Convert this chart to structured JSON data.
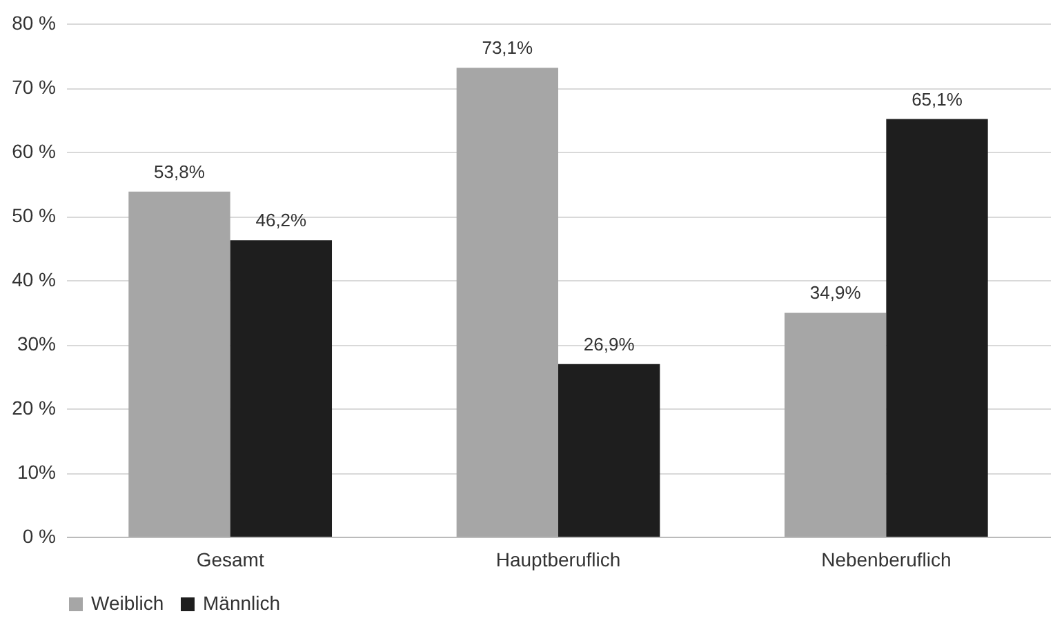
{
  "chart_data": {
    "type": "bar",
    "categories": [
      "Gesamt",
      "Hauptberuflich",
      "Nebenberuflich"
    ],
    "series": [
      {
        "name": "Weiblich",
        "color": "#a6a6a6",
        "values": [
          53.8,
          73.1,
          34.9
        ],
        "value_labels": [
          "53,8%",
          "73,1%",
          "34,9%"
        ]
      },
      {
        "name": "Männlich",
        "color": "#1e1e1e",
        "values": [
          46.2,
          26.9,
          65.1
        ],
        "value_labels": [
          "46,2%",
          "26,9%",
          "65,1%"
        ]
      }
    ],
    "ylim": [
      0,
      80
    ],
    "yticks": [
      {
        "value": 0,
        "label": "0 %"
      },
      {
        "value": 10,
        "label": "10%"
      },
      {
        "value": 20,
        "label": "20 %"
      },
      {
        "value": 30,
        "label": "30%"
      },
      {
        "value": 40,
        "label": "40 %"
      },
      {
        "value": 50,
        "label": "50 %"
      },
      {
        "value": 60,
        "label": "60 %"
      },
      {
        "value": 70,
        "label": "70 %"
      },
      {
        "value": 80,
        "label": "80 %"
      }
    ],
    "grid": "y",
    "legend": "bottom"
  }
}
